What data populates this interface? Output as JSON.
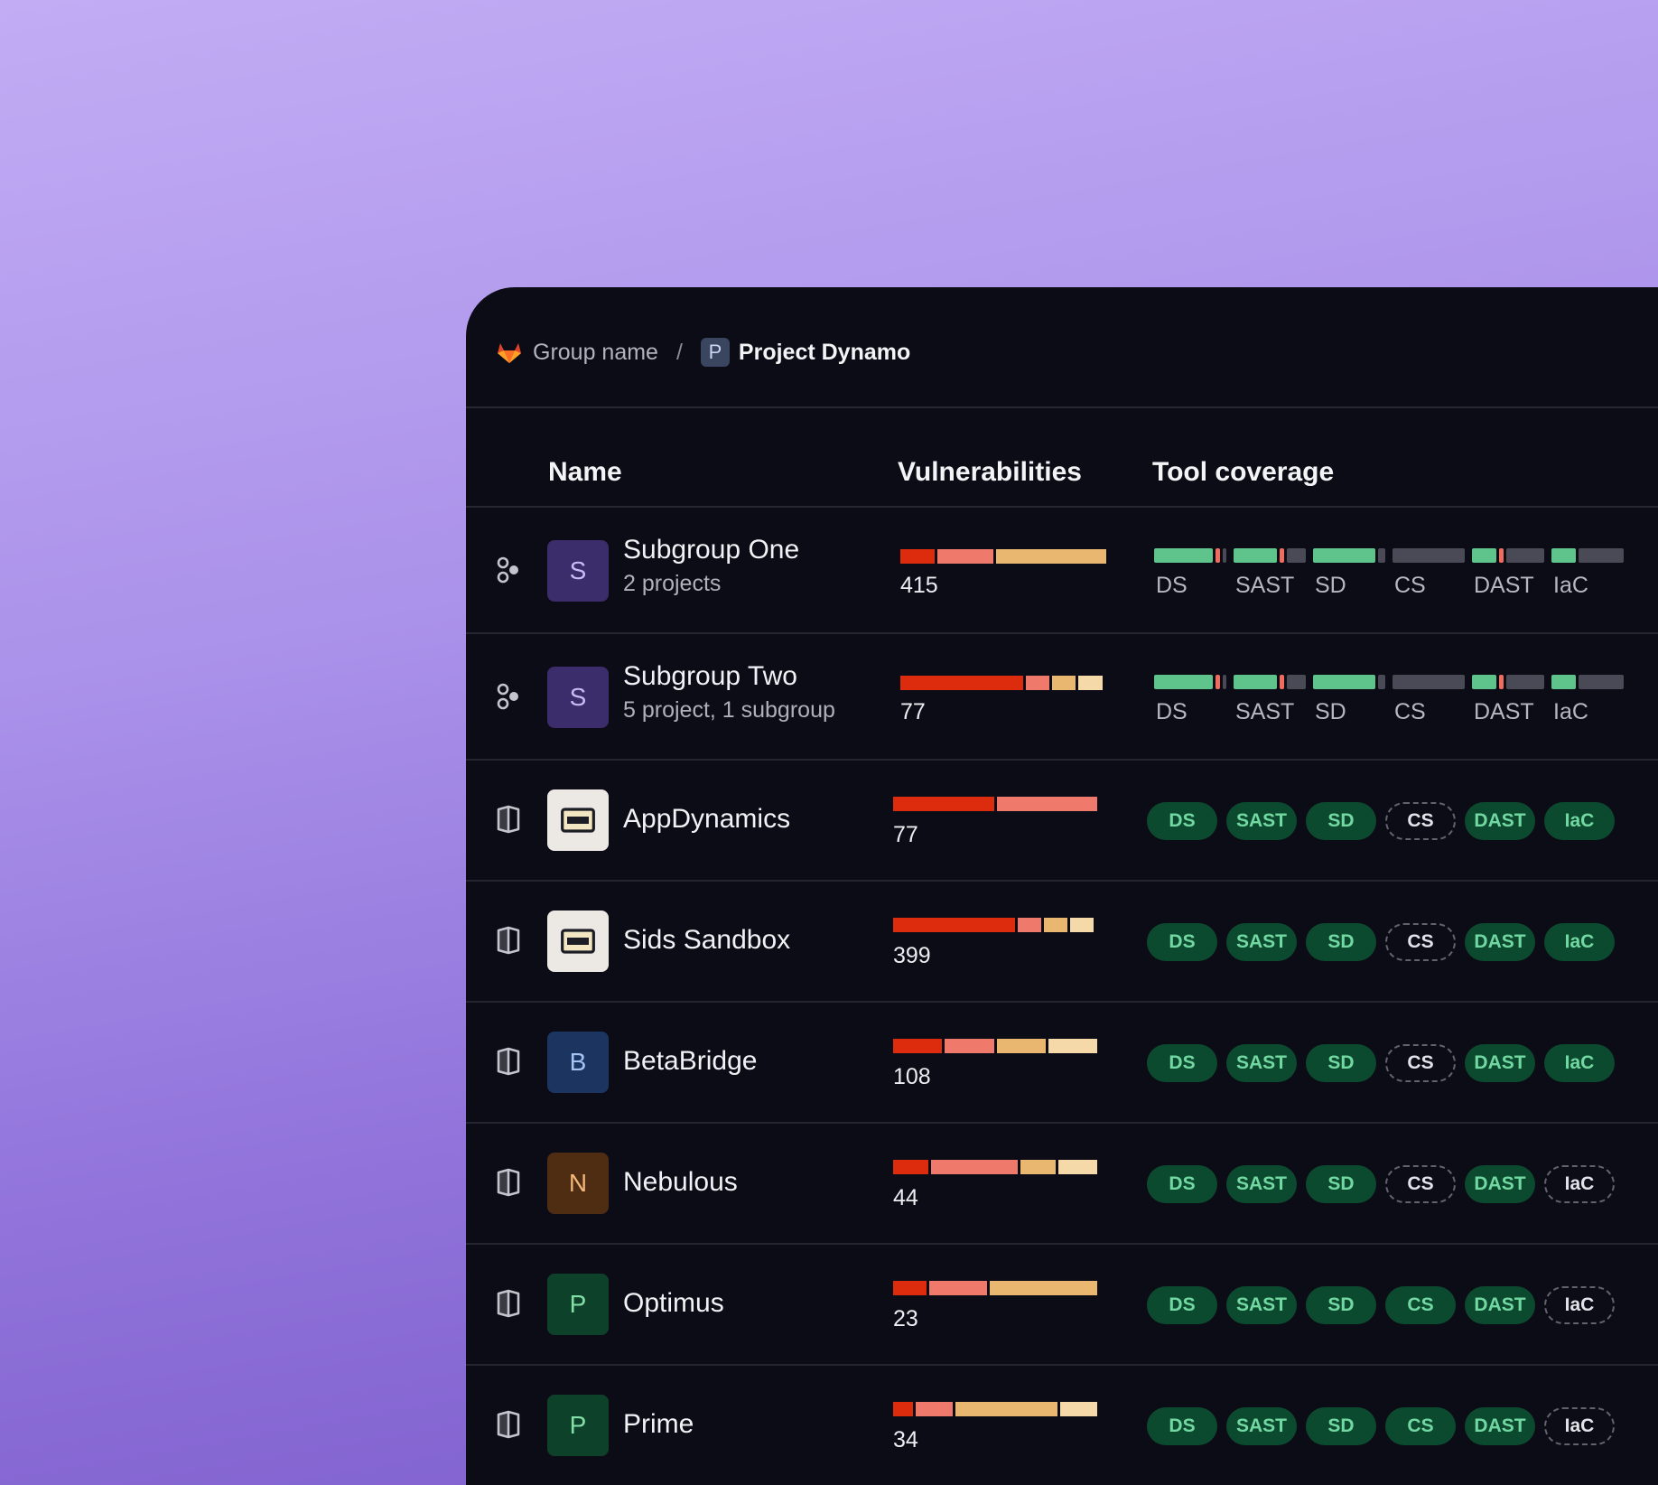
{
  "breadcrumb": {
    "group": "Group name",
    "separator": "/",
    "project_initial": "P",
    "project": "Project Dynamo"
  },
  "headers": {
    "name": "Name",
    "vulnerabilities": "Vulnerabilities",
    "tool_coverage": "Tool coverage"
  },
  "colors": {
    "critical": "#dd2b0e",
    "high": "#ef7a6c",
    "medium": "#e9b76f",
    "low": "#f5d9a8",
    "covered": "#5ec48b",
    "uncovered": "#4a4a56",
    "issue": "#ef6c5e",
    "pill_bg": "#0c4a2f",
    "pill_text": "#72d8a1"
  },
  "rows": [
    {
      "type": "subgroup",
      "type_icon": "subgroup-icon",
      "initial": "S",
      "name": "Subgroup One",
      "subtitle": "2 projects",
      "avatar_bg": "#3b2c6b",
      "avatar_fg": "#c8baf3",
      "vuln_total": "415",
      "vuln_segments": [
        0.17,
        0.28,
        0.55
      ],
      "coverage": [
        {
          "label": "DS",
          "covered": 0.81,
          "issue": true
        },
        {
          "label": "SAST",
          "covered": 0.6,
          "issue": true
        },
        {
          "label": "SD",
          "covered": 0.86,
          "issue": false
        },
        {
          "label": "CS",
          "covered": 0,
          "issue": false
        },
        {
          "label": "DAST",
          "covered": 0.34,
          "issue": true
        },
        {
          "label": "IaC",
          "covered": 0.34,
          "issue": false
        }
      ]
    },
    {
      "type": "subgroup",
      "type_icon": "subgroup-icon",
      "initial": "S",
      "name": "Subgroup Two",
      "subtitle": "5 project, 1 subgroup",
      "avatar_bg": "#3b2c6b",
      "avatar_fg": "#c8baf3",
      "vuln_total": "77",
      "vuln_segments": [
        0.62,
        0.12,
        0.12,
        0.12
      ],
      "coverage": [
        {
          "label": "DS",
          "covered": 0.81,
          "issue": true
        },
        {
          "label": "SAST",
          "covered": 0.6,
          "issue": true
        },
        {
          "label": "SD",
          "covered": 0.86,
          "issue": false
        },
        {
          "label": "CS",
          "covered": 0,
          "issue": false
        },
        {
          "label": "DAST",
          "covered": 0.34,
          "issue": true
        },
        {
          "label": "IaC",
          "covered": 0.34,
          "issue": false
        }
      ]
    },
    {
      "type": "project",
      "type_icon": "project-icon",
      "initial": "",
      "avatar_icon": "terminal-icon",
      "name": "AppDynamics",
      "subtitle": "",
      "avatar_bg": "#ece9e4",
      "avatar_fg": "#1d1d26",
      "vuln_total": "77",
      "vuln_segments": [
        0.5,
        0.5
      ],
      "pills": [
        {
          "label": "DS",
          "on": true
        },
        {
          "label": "SAST",
          "on": true
        },
        {
          "label": "SD",
          "on": true
        },
        {
          "label": "CS",
          "on": false
        },
        {
          "label": "DAST",
          "on": true
        },
        {
          "label": "IaC",
          "on": true
        }
      ]
    },
    {
      "type": "project",
      "type_icon": "project-icon",
      "initial": "",
      "avatar_icon": "terminal-icon",
      "name": "Sids Sandbox",
      "subtitle": "",
      "avatar_bg": "#ece9e4",
      "avatar_fg": "#1d1d26",
      "vuln_total": "399",
      "vuln_segments": [
        0.62,
        0.12,
        0.12,
        0.12
      ],
      "pills": [
        {
          "label": "DS",
          "on": true
        },
        {
          "label": "SAST",
          "on": true
        },
        {
          "label": "SD",
          "on": true
        },
        {
          "label": "CS",
          "on": false
        },
        {
          "label": "DAST",
          "on": true
        },
        {
          "label": "IaC",
          "on": true
        }
      ]
    },
    {
      "type": "project",
      "type_icon": "project-icon",
      "initial": "B",
      "name": "BetaBridge",
      "subtitle": "",
      "avatar_bg": "#1b3560",
      "avatar_fg": "#a4c2f2",
      "vuln_total": "108",
      "vuln_segments": [
        0.25,
        0.25,
        0.25,
        0.25
      ],
      "pills": [
        {
          "label": "DS",
          "on": true
        },
        {
          "label": "SAST",
          "on": true
        },
        {
          "label": "SD",
          "on": true
        },
        {
          "label": "CS",
          "on": false
        },
        {
          "label": "DAST",
          "on": true
        },
        {
          "label": "IaC",
          "on": true
        }
      ]
    },
    {
      "type": "project",
      "type_icon": "project-icon",
      "initial": "N",
      "name": "Nebulous",
      "subtitle": "",
      "avatar_bg": "#4e2d12",
      "avatar_fg": "#f2b67a",
      "vuln_total": "44",
      "vuln_segments": [
        0.18,
        0.44,
        0.18,
        0.2
      ],
      "pills": [
        {
          "label": "DS",
          "on": true
        },
        {
          "label": "SAST",
          "on": true
        },
        {
          "label": "SD",
          "on": true
        },
        {
          "label": "CS",
          "on": false
        },
        {
          "label": "DAST",
          "on": true
        },
        {
          "label": "IaC",
          "on": false
        }
      ]
    },
    {
      "type": "project",
      "type_icon": "project-icon",
      "initial": "P",
      "name": "Optimus",
      "subtitle": "",
      "avatar_bg": "#0e4129",
      "avatar_fg": "#82dfa8",
      "vuln_total": "23",
      "vuln_segments": [
        0.17,
        0.29,
        0.54
      ],
      "pills": [
        {
          "label": "DS",
          "on": true
        },
        {
          "label": "SAST",
          "on": true
        },
        {
          "label": "SD",
          "on": true
        },
        {
          "label": "CS",
          "on": true
        },
        {
          "label": "DAST",
          "on": true
        },
        {
          "label": "IaC",
          "on": false
        }
      ]
    },
    {
      "type": "project",
      "type_icon": "project-icon",
      "initial": "P",
      "name": "Prime",
      "subtitle": "",
      "avatar_bg": "#0e4129",
      "avatar_fg": "#82dfa8",
      "vuln_total": "34",
      "vuln_segments": [
        0.1,
        0.19,
        0.52,
        0.19
      ],
      "pills": [
        {
          "label": "DS",
          "on": true
        },
        {
          "label": "SAST",
          "on": true
        },
        {
          "label": "SD",
          "on": true
        },
        {
          "label": "CS",
          "on": true
        },
        {
          "label": "DAST",
          "on": true
        },
        {
          "label": "IaC",
          "on": false
        }
      ]
    }
  ]
}
